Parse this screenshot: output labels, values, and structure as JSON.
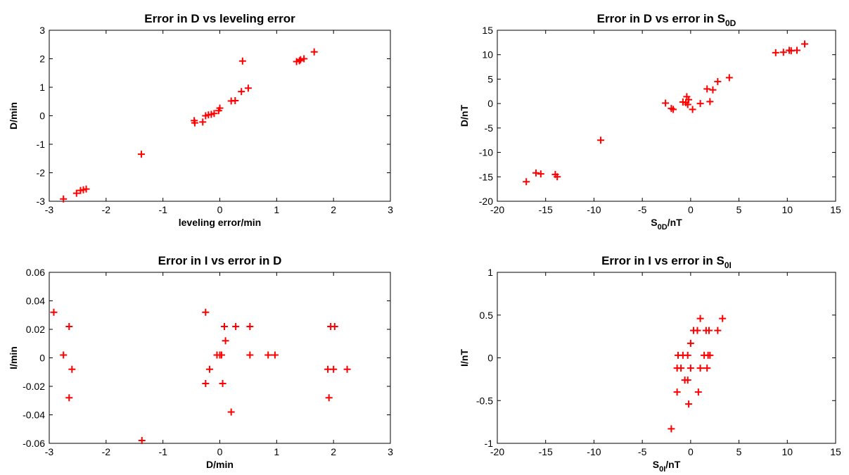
{
  "chart_data": [
    {
      "type": "scatter",
      "title": "Error in D vs leveling error",
      "xlabel": "leveling error/min",
      "ylabel": "D/min",
      "xlim": [
        -3,
        3
      ],
      "ylim": [
        -3,
        3
      ],
      "xticks": [
        "-3",
        "-2",
        "-1",
        "0",
        "1",
        "2",
        "3"
      ],
      "yticks": [
        "-3",
        "-2",
        "-1",
        "0",
        "1",
        "2",
        "3"
      ],
      "grid": false,
      "series": [
        {
          "marker": "+",
          "color": "#ff0000",
          "points": [
            [
              -2.75,
              -2.92
            ],
            [
              -2.52,
              -2.72
            ],
            [
              -2.45,
              -2.62
            ],
            [
              -2.4,
              -2.6
            ],
            [
              -2.35,
              -2.57
            ],
            [
              -1.38,
              -1.35
            ],
            [
              -0.45,
              -0.17
            ],
            [
              -0.44,
              -0.25
            ],
            [
              -0.3,
              -0.22
            ],
            [
              -0.25,
              0.0
            ],
            [
              -0.2,
              0.03
            ],
            [
              -0.15,
              0.05
            ],
            [
              -0.1,
              0.08
            ],
            [
              -0.02,
              0.18
            ],
            [
              0.0,
              0.27
            ],
            [
              0.2,
              0.52
            ],
            [
              0.27,
              0.53
            ],
            [
              0.38,
              0.85
            ],
            [
              0.5,
              0.97
            ],
            [
              0.4,
              1.92
            ],
            [
              1.35,
              1.9
            ],
            [
              1.4,
              1.93
            ],
            [
              1.42,
              1.97
            ],
            [
              1.48,
              2.0
            ],
            [
              1.66,
              2.24
            ]
          ]
        }
      ]
    },
    {
      "type": "scatter",
      "title": "Error in D vs error in S",
      "title_sub": "0D",
      "xlabel": "S",
      "xlabel_sub": "0D",
      "xlabel_suffix": "/nT",
      "ylabel": "D/nT",
      "xlim": [
        -20,
        15
      ],
      "ylim": [
        -20,
        15
      ],
      "xticks": [
        "-20",
        "-15",
        "-10",
        "-5",
        "0",
        "5",
        "10",
        "15"
      ],
      "yticks": [
        "-20",
        "-15",
        "-10",
        "-5",
        "0",
        "5",
        "10",
        "15"
      ],
      "grid": false,
      "series": [
        {
          "marker": "+",
          "color": "#ff0000",
          "points": [
            [
              -17.0,
              -16.0
            ],
            [
              -16.0,
              -14.2
            ],
            [
              -15.5,
              -14.4
            ],
            [
              -14.0,
              -14.5
            ],
            [
              -13.8,
              -15.0
            ],
            [
              -9.3,
              -7.5
            ],
            [
              -2.6,
              0.1
            ],
            [
              -2.0,
              -1.0
            ],
            [
              -1.8,
              -1.2
            ],
            [
              -0.8,
              0.3
            ],
            [
              -0.5,
              0.2
            ],
            [
              -0.4,
              1.4
            ],
            [
              -0.3,
              -0.2
            ],
            [
              -0.2,
              0.8
            ],
            [
              0.2,
              -1.2
            ],
            [
              1.0,
              0.0
            ],
            [
              1.7,
              3.0
            ],
            [
              2.0,
              0.4
            ],
            [
              2.3,
              2.8
            ],
            [
              2.8,
              4.5
            ],
            [
              4.0,
              5.3
            ],
            [
              8.8,
              10.4
            ],
            [
              9.6,
              10.5
            ],
            [
              10.2,
              10.9
            ],
            [
              10.4,
              10.8
            ],
            [
              11.0,
              10.9
            ],
            [
              11.8,
              12.2
            ]
          ]
        }
      ]
    },
    {
      "type": "scatter",
      "title": "Error in I vs error in D",
      "xlabel": "D/min",
      "ylabel": "I/min",
      "xlim": [
        -3,
        3
      ],
      "ylim": [
        -0.06,
        0.06
      ],
      "xticks": [
        "-3",
        "-2",
        "-1",
        "0",
        "1",
        "2",
        "3"
      ],
      "yticks": [
        "-0.06",
        "-0.04",
        "-0.02",
        "0",
        "0.02",
        "0.04",
        "0.06"
      ],
      "grid": false,
      "series": [
        {
          "marker": "+",
          "color": "#ff0000",
          "points": [
            [
              -2.92,
              0.032
            ],
            [
              -2.75,
              0.002
            ],
            [
              -2.65,
              0.022
            ],
            [
              -2.6,
              -0.008
            ],
            [
              -2.65,
              -0.028
            ],
            [
              -1.37,
              -0.058
            ],
            [
              -0.25,
              0.032
            ],
            [
              -0.25,
              -0.018
            ],
            [
              -0.18,
              -0.008
            ],
            [
              -0.05,
              0.002
            ],
            [
              0.0,
              0.002
            ],
            [
              0.03,
              0.002
            ],
            [
              0.05,
              -0.018
            ],
            [
              0.08,
              0.022
            ],
            [
              0.1,
              0.012
            ],
            [
              0.2,
              -0.038
            ],
            [
              0.28,
              0.022
            ],
            [
              0.53,
              0.022
            ],
            [
              0.53,
              0.002
            ],
            [
              0.85,
              0.002
            ],
            [
              0.97,
              0.002
            ],
            [
              1.9,
              -0.008
            ],
            [
              1.92,
              -0.028
            ],
            [
              1.95,
              0.022
            ],
            [
              2.0,
              -0.008
            ],
            [
              2.02,
              0.022
            ],
            [
              2.24,
              -0.008
            ]
          ]
        }
      ]
    },
    {
      "type": "scatter",
      "title": "Error in I vs error in S",
      "title_sub": "0I",
      "xlabel": "S",
      "xlabel_sub": "0I",
      "xlabel_suffix": "/nT",
      "ylabel": "I/nT",
      "xlim": [
        -20,
        15
      ],
      "ylim": [
        -1,
        1
      ],
      "xticks": [
        "-20",
        "-15",
        "-10",
        "-5",
        "0",
        "5",
        "10",
        "15"
      ],
      "yticks": [
        "-1",
        "-0.5",
        "0",
        "0.5",
        "1"
      ],
      "grid": false,
      "series": [
        {
          "marker": "+",
          "color": "#ff0000",
          "points": [
            [
              -2.0,
              -0.83
            ],
            [
              -1.4,
              -0.4
            ],
            [
              -1.3,
              0.03
            ],
            [
              -1.4,
              -0.12
            ],
            [
              -1.0,
              -0.12
            ],
            [
              -0.8,
              0.03
            ],
            [
              -0.6,
              -0.26
            ],
            [
              -0.3,
              -0.26
            ],
            [
              -0.3,
              0.03
            ],
            [
              -0.2,
              -0.54
            ],
            [
              0.0,
              0.17
            ],
            [
              0.0,
              -0.12
            ],
            [
              0.3,
              0.32
            ],
            [
              0.7,
              0.32
            ],
            [
              0.8,
              -0.4
            ],
            [
              1.0,
              0.46
            ],
            [
              1.0,
              -0.12
            ],
            [
              1.4,
              0.03
            ],
            [
              1.6,
              0.32
            ],
            [
              1.7,
              -0.12
            ],
            [
              1.8,
              0.03
            ],
            [
              1.9,
              0.32
            ],
            [
              2.0,
              0.03
            ],
            [
              2.8,
              0.32
            ],
            [
              3.3,
              0.46
            ]
          ]
        }
      ]
    }
  ]
}
